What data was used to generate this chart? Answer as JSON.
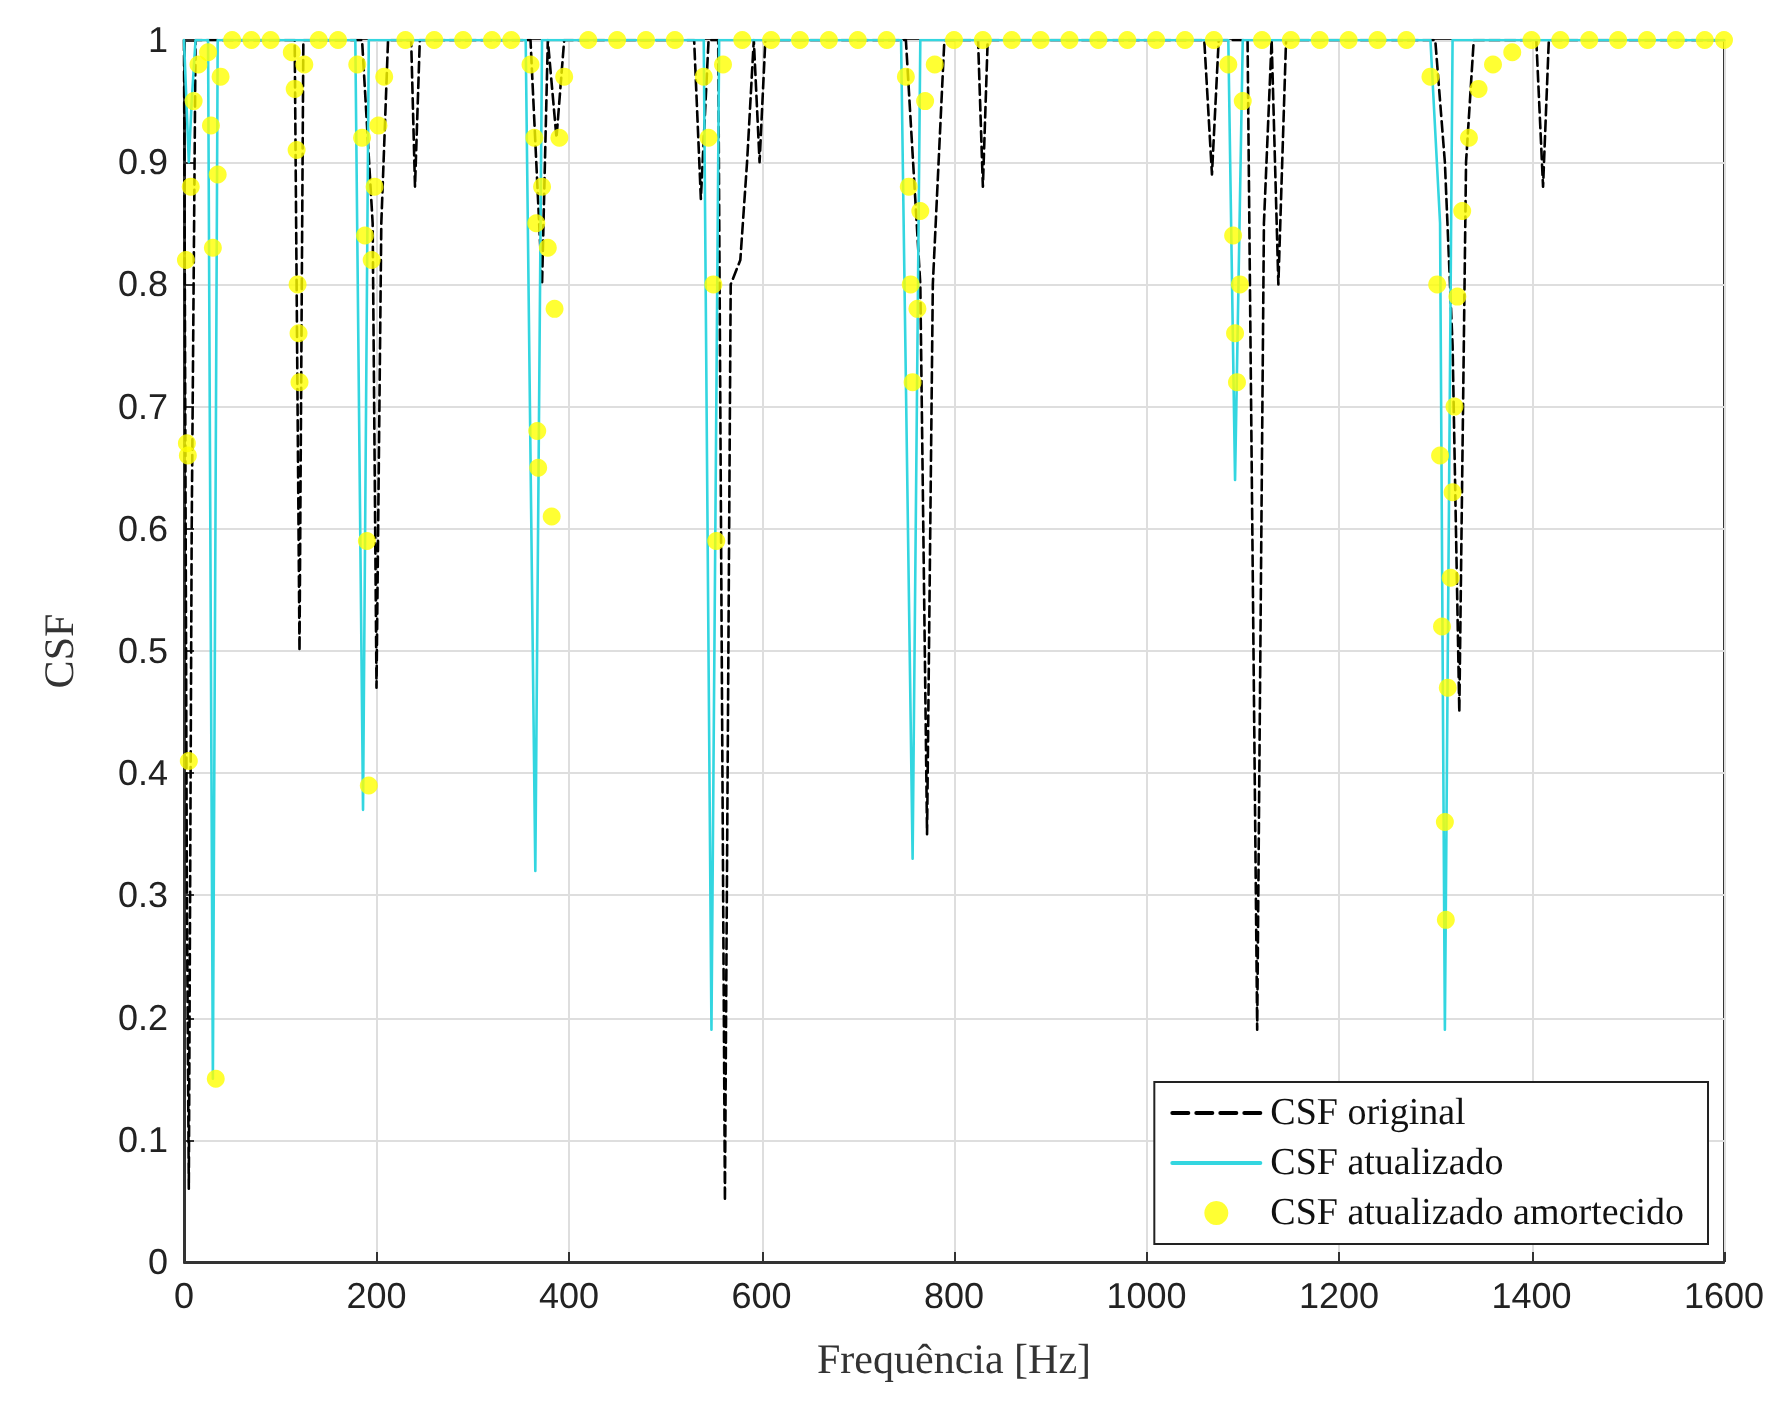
{
  "chart_data": {
    "type": "line",
    "xlabel": "Frequência [Hz]",
    "ylabel": "CSF",
    "xlim": [
      0,
      1600
    ],
    "xticks": [
      0,
      200,
      400,
      600,
      800,
      1000,
      1200,
      1400,
      1600
    ],
    "ylim": [
      0,
      1
    ],
    "yticks": [
      0,
      0.1,
      0.2,
      0.3,
      0.4,
      0.5,
      0.6,
      0.7,
      0.8,
      0.9,
      1
    ],
    "grid": true,
    "legend": "bottom right",
    "series": [
      {
        "name": "CSF original",
        "color": "#000000",
        "line_style": "dashed",
        "marker": "none",
        "x": [
          0,
          3,
          5,
          8,
          12,
          115,
          120,
          124,
          185,
          196,
          200,
          205,
          212,
          236,
          240,
          245,
          360,
          372,
          378,
          387,
          395,
          530,
          537,
          545,
          555,
          562,
          568,
          578,
          585,
          592,
          598,
          604,
          750,
          765,
          772,
          778,
          790,
          825,
          830,
          835,
          1060,
          1068,
          1075,
          1105,
          1115,
          1122,
          1130,
          1137,
          1145,
          1300,
          1310,
          1318,
          1325,
          1332,
          1340,
          1405,
          1412,
          1418,
          1600
        ],
        "values": [
          1,
          0.3,
          0.06,
          0.6,
          1,
          1,
          0.5,
          1,
          1,
          0.85,
          0.47,
          0.85,
          1,
          1,
          0.88,
          1,
          1,
          0.8,
          1,
          0.92,
          1,
          1,
          0.87,
          1,
          1,
          0.05,
          0.8,
          0.82,
          0.9,
          1,
          0.9,
          1,
          1,
          0.8,
          0.35,
          0.8,
          1,
          1,
          0.88,
          1,
          1,
          0.89,
          1,
          1,
          0.19,
          0.85,
          1,
          0.8,
          1,
          1,
          0.9,
          0.75,
          0.45,
          0.9,
          1,
          1,
          0.88,
          1,
          1
        ]
      },
      {
        "name": "CSF atualizado",
        "color": "#33d6e0",
        "line_style": "solid",
        "marker": "none",
        "x": [
          0,
          5,
          8,
          12,
          25,
          30,
          35,
          178,
          186,
          192,
          355,
          365,
          372,
          540,
          548,
          556,
          745,
          757,
          765,
          1085,
          1092,
          1100,
          1295,
          1305,
          1310,
          1318,
          1600
        ],
        "values": [
          1,
          0.9,
          0.95,
          1,
          1,
          0.15,
          1,
          1,
          0.37,
          1,
          1,
          0.32,
          1,
          1,
          0.19,
          1,
          1,
          0.33,
          1,
          1,
          0.64,
          1,
          1,
          0.85,
          0.19,
          1,
          1
        ]
      },
      {
        "name": "CSF atualizado amortecido",
        "type": "scatter",
        "color": "#ffff00",
        "marker": "circle",
        "x": [
          2,
          3,
          4,
          5,
          7,
          10,
          15,
          25,
          28,
          30,
          33,
          35,
          38,
          50,
          70,
          90,
          112,
          115,
          117,
          118,
          119,
          120,
          125,
          140,
          160,
          180,
          185,
          188,
          190,
          192,
          195,
          198,
          202,
          208,
          230,
          260,
          290,
          320,
          340,
          360,
          364,
          366,
          367,
          368,
          372,
          378,
          382,
          385,
          390,
          395,
          420,
          450,
          480,
          510,
          540,
          545,
          550,
          553,
          560,
          580,
          610,
          640,
          670,
          700,
          730,
          750,
          753,
          755,
          757,
          762,
          765,
          770,
          780,
          800,
          830,
          860,
          890,
          920,
          950,
          980,
          1010,
          1040,
          1070,
          1085,
          1090,
          1092,
          1094,
          1097,
          1100,
          1120,
          1150,
          1180,
          1210,
          1240,
          1270,
          1295,
          1302,
          1305,
          1307,
          1310,
          1311,
          1313,
          1316,
          1318,
          1320,
          1323,
          1328,
          1335,
          1345,
          1360,
          1380,
          1400,
          1430,
          1460,
          1490,
          1520,
          1550,
          1580,
          1600
        ],
        "values": [
          0.82,
          0.67,
          0.66,
          0.41,
          0.88,
          0.95,
          0.98,
          0.99,
          0.93,
          0.83,
          0.15,
          0.89,
          0.97,
          1,
          1,
          1,
          0.99,
          0.96,
          0.91,
          0.8,
          0.76,
          0.72,
          0.98,
          1,
          1,
          0.98,
          0.92,
          0.84,
          0.59,
          0.39,
          0.82,
          0.88,
          0.93,
          0.97,
          1,
          1,
          1,
          1,
          1,
          0.98,
          0.92,
          0.85,
          0.68,
          0.65,
          0.88,
          0.83,
          0.61,
          0.78,
          0.92,
          0.97,
          1,
          1,
          1,
          1,
          0.97,
          0.92,
          0.8,
          0.59,
          0.98,
          1,
          1,
          1,
          1,
          1,
          1,
          0.97,
          0.88,
          0.8,
          0.72,
          0.78,
          0.86,
          0.95,
          0.98,
          1,
          1,
          1,
          1,
          1,
          1,
          1,
          1,
          1,
          1,
          0.98,
          0.84,
          0.76,
          0.72,
          0.8,
          0.95,
          1,
          1,
          1,
          1,
          1,
          1,
          0.97,
          0.8,
          0.66,
          0.52,
          0.36,
          0.28,
          0.47,
          0.56,
          0.63,
          0.7,
          0.79,
          0.86,
          0.92,
          0.96,
          0.98,
          0.99,
          1,
          1,
          1,
          1,
          1,
          1,
          1,
          1
        ]
      }
    ]
  }
}
